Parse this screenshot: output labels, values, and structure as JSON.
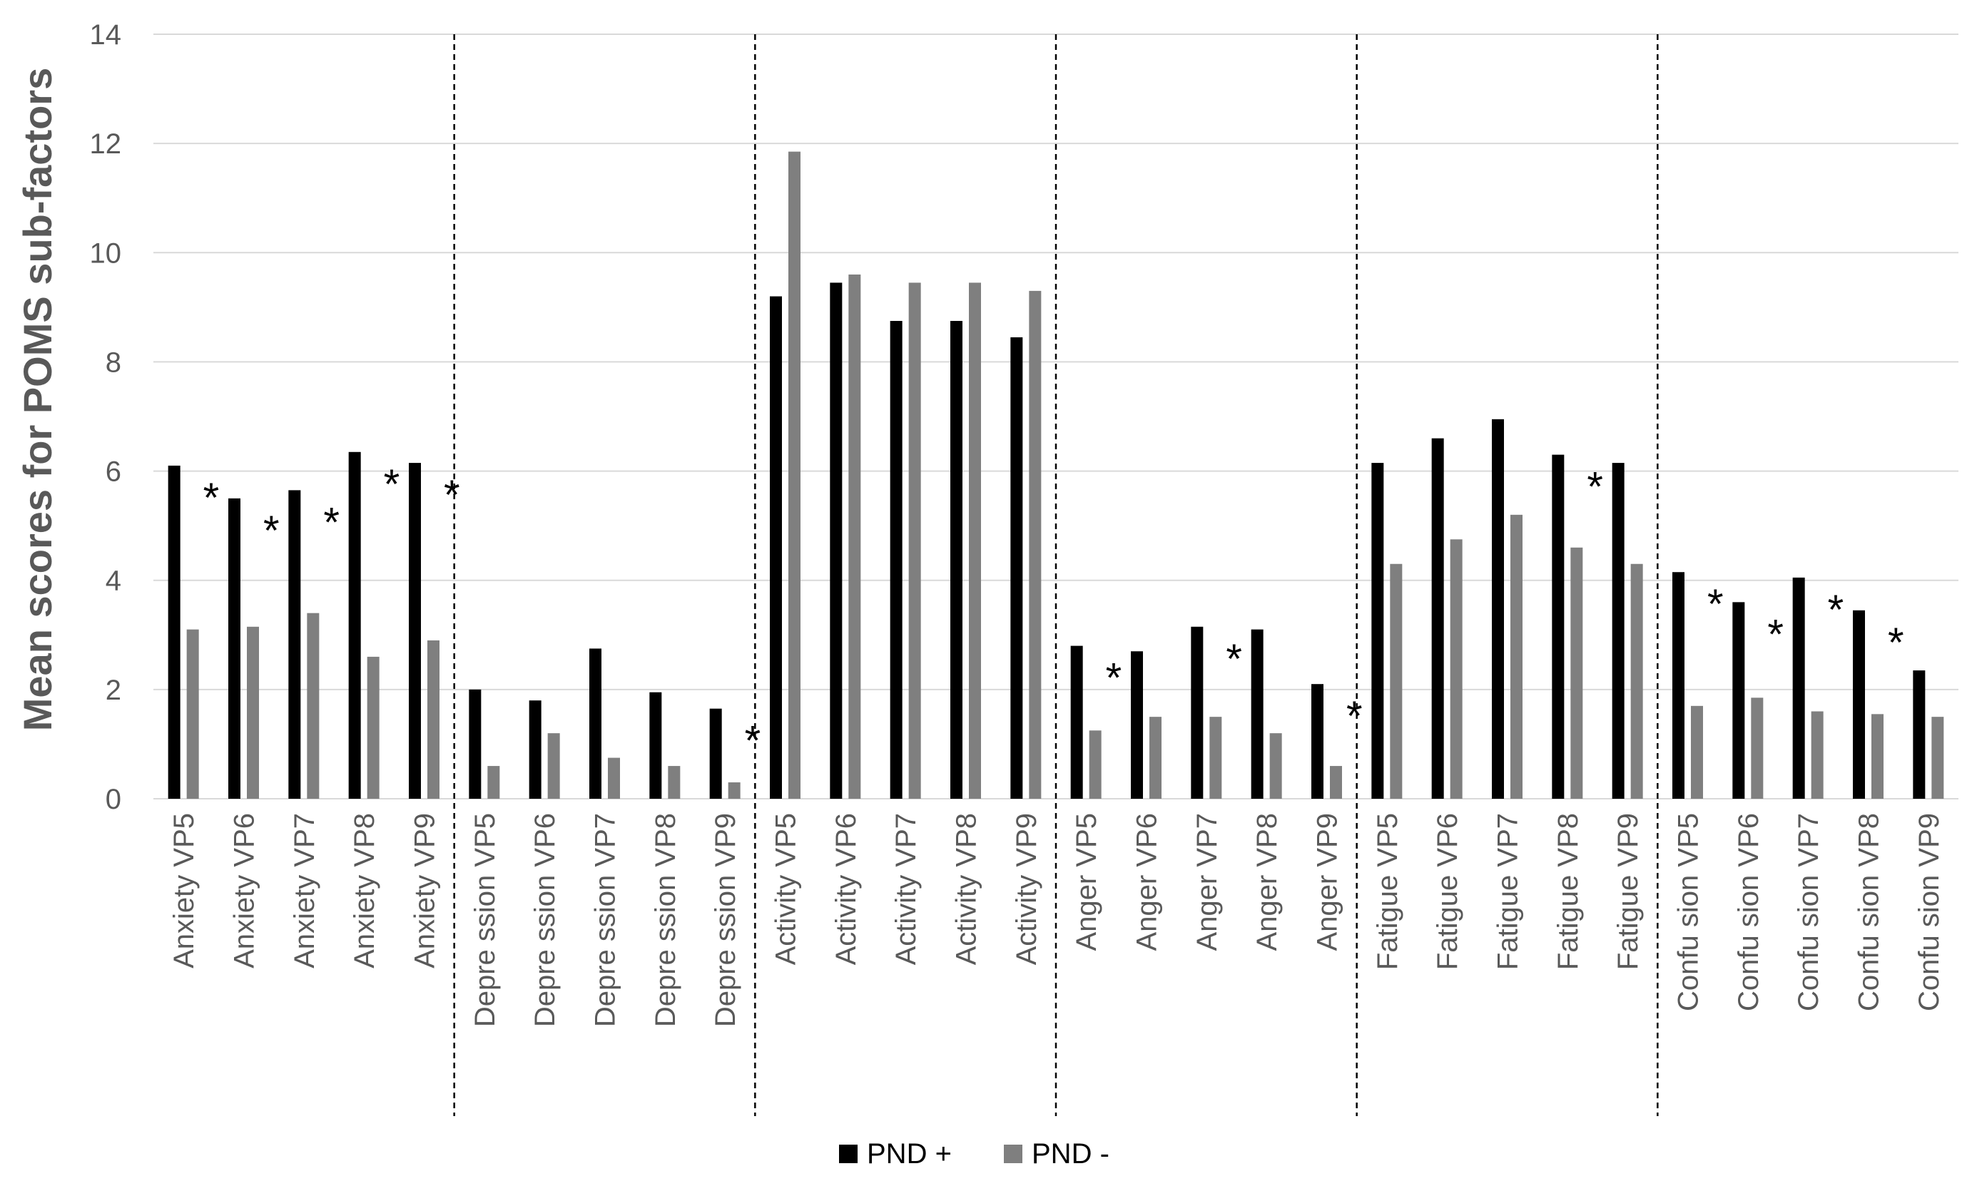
{
  "chart_data": {
    "type": "bar",
    "ylabel": "Mean scores for POMS sub-factors",
    "ylim": [
      0,
      14
    ],
    "yticks": [
      0,
      2,
      4,
      6,
      8,
      10,
      12,
      14
    ],
    "grid": true,
    "legend_position": "bottom-center",
    "categories": [
      "Anxiety VP5",
      "Anxiety VP6",
      "Anxiety VP7",
      "Anxiety VP8",
      "Anxiety VP9",
      "Depre ssion VP5",
      "Depre ssion VP6",
      "Depre ssion VP7",
      "Depre ssion VP8",
      "Depre ssion VP9",
      "Activity VP5",
      "Activity VP6",
      "Activity VP7",
      "Activity VP8",
      "Activity VP9",
      "Anger VP5",
      "Anger VP6",
      "Anger VP7",
      "Anger VP8",
      "Anger VP9",
      "Fatigue VP5",
      "Fatigue VP6",
      "Fatigue VP7",
      "Fatigue VP8",
      "Fatigue VP9",
      "Confu sion VP5",
      "Confu sion VP6",
      "Confu sion VP7",
      "Confu sion VP8",
      "Confu sion VP9"
    ],
    "series": [
      {
        "name": "PND +",
        "color": "#000000",
        "values": [
          6.1,
          5.5,
          5.65,
          6.35,
          6.15,
          2.0,
          1.8,
          2.75,
          1.95,
          1.65,
          9.2,
          9.45,
          8.75,
          8.75,
          8.45,
          2.8,
          2.7,
          3.15,
          3.1,
          2.1,
          6.15,
          6.6,
          6.95,
          6.3,
          6.15,
          4.15,
          3.6,
          4.05,
          3.45,
          2.35
        ]
      },
      {
        "name": "PND -",
        "color": "#7f7f7f",
        "values": [
          3.1,
          3.15,
          3.4,
          2.6,
          2.9,
          0.6,
          1.2,
          0.75,
          0.6,
          0.3,
          11.85,
          9.6,
          9.45,
          9.45,
          9.3,
          1.25,
          1.5,
          1.5,
          1.2,
          0.6,
          4.3,
          4.75,
          5.2,
          4.6,
          4.3,
          1.7,
          1.85,
          1.6,
          1.55,
          1.5
        ]
      }
    ],
    "significance": [
      "*",
      "*",
      "*",
      "*",
      "*",
      "",
      "",
      "",
      "",
      "*",
      "",
      "",
      "",
      "",
      "",
      "*",
      "",
      "*",
      "",
      "*",
      "",
      "",
      "",
      "*",
      "",
      "*",
      "*",
      "*",
      "*",
      ""
    ]
  }
}
